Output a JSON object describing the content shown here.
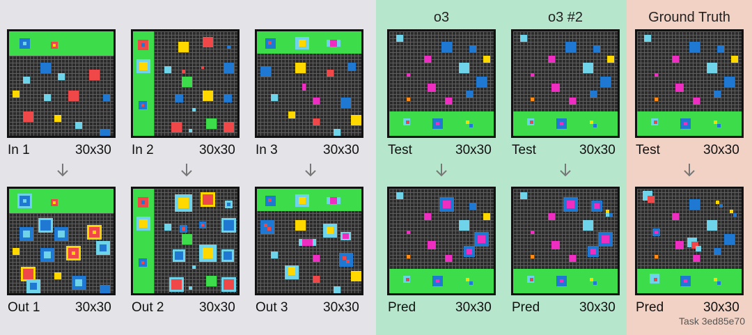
{
  "columns": {
    "o3": "o3",
    "o3_2": "o3 #2",
    "ground_truth": "Ground Truth"
  },
  "panels": {
    "in1": {
      "name": "In 1",
      "size": "30x30"
    },
    "in2": {
      "name": "In 2",
      "size": "30x30"
    },
    "in3": {
      "name": "In 3",
      "size": "30x30"
    },
    "out1": {
      "name": "Out 1",
      "size": "30x30"
    },
    "out2": {
      "name": "Out 2",
      "size": "30x30"
    },
    "out3": {
      "name": "Out 3",
      "size": "30x30"
    },
    "test_o3": {
      "name": "Test",
      "size": "30x30"
    },
    "test_o3b": {
      "name": "Test",
      "size": "30x30"
    },
    "test_gt": {
      "name": "Test",
      "size": "30x30"
    },
    "pred_o3": {
      "name": "Pred",
      "size": "30x30"
    },
    "pred_o3b": {
      "name": "Pred",
      "size": "30x30"
    },
    "pred_gt": {
      "name": "Pred",
      "size": "30x30"
    }
  },
  "task_id": "Task 3ed85e70",
  "colors": {
    "background": "#e3e3e8",
    "o3_panel": "#b6e6cc",
    "ground_truth_panel": "#f2d2c4",
    "grid_black": "#2b2b2b",
    "green": "#3ddc4a",
    "red": "#f04848",
    "blue": "#1f78d1",
    "cyan": "#6fd3ea",
    "yellow": "#ffd800",
    "magenta": "#ee2ec0",
    "orange": "#ff8c1a"
  }
}
